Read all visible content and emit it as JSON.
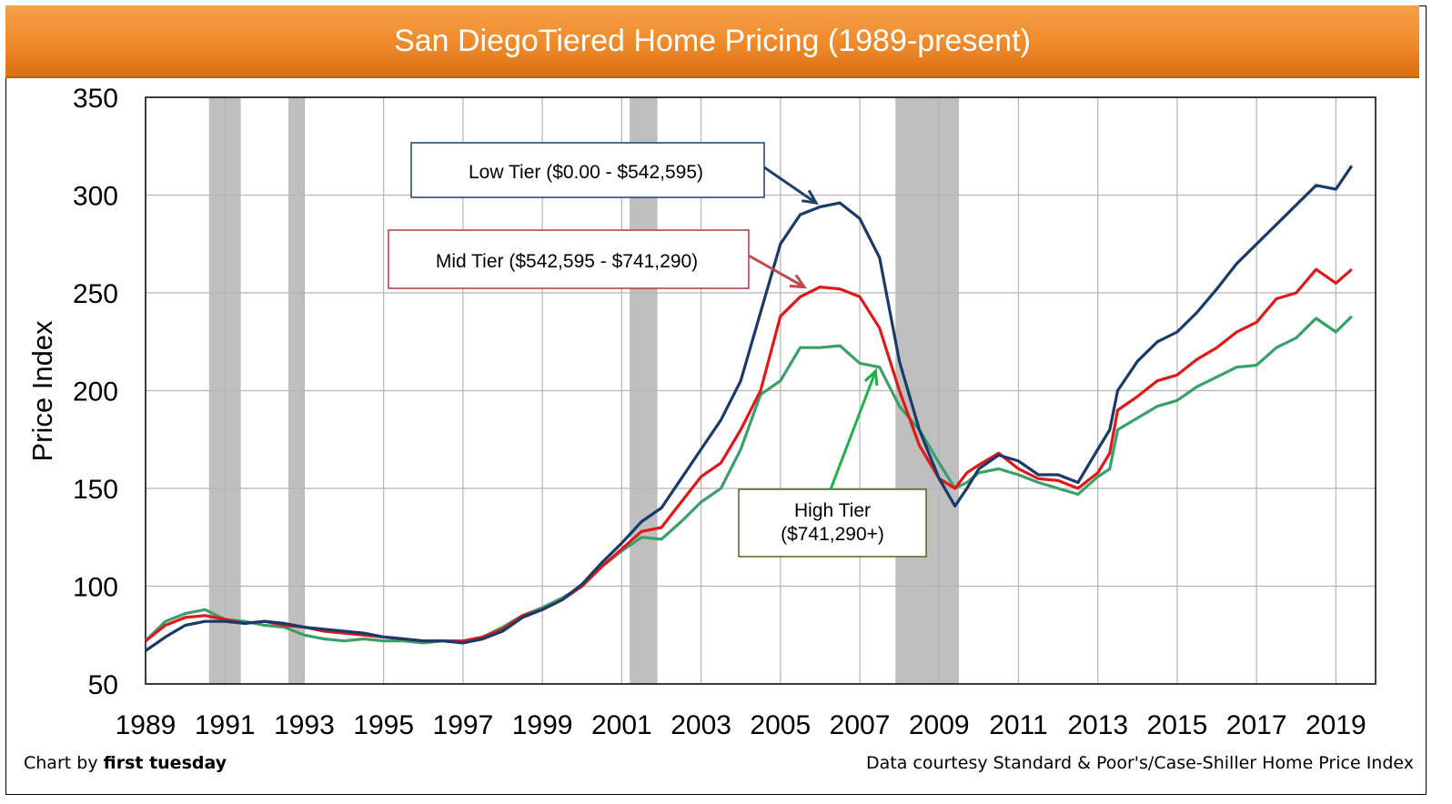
{
  "title": "San DiegoTiered Home Pricing (1989-present)",
  "footer": {
    "credit_prefix": "Chart by ",
    "credit_brand": "first tuesday",
    "source": "Data courtesy Standard & Poor's/Case-Shiller Home Price Index"
  },
  "chart_data": {
    "type": "line",
    "title": "San DiegoTiered Home Pricing (1989-present)",
    "xlabel": "",
    "ylabel": "Price Index",
    "xlim": [
      1989.0,
      2020.0
    ],
    "ylim": [
      50,
      350
    ],
    "grid": true,
    "x_ticks": [
      "1989",
      "1991",
      "1993",
      "1995",
      "1997",
      "1999",
      "2001",
      "2003",
      "2005",
      "2007",
      "2009",
      "2011",
      "2013",
      "2015",
      "2017",
      "2019"
    ],
    "y_ticks": [
      "50",
      "100",
      "150",
      "200",
      "250",
      "300",
      "350"
    ],
    "recessions": [
      [
        1990.6,
        1991.4
      ],
      [
        1992.6,
        1993.0
      ],
      [
        2001.2,
        2001.9
      ],
      [
        2007.9,
        2009.5
      ]
    ],
    "annotations": [
      {
        "label": "Low Tier ($0.00 - $542,595)",
        "points_to": [
          2005.9,
          296
        ],
        "border": "#1f3f6e"
      },
      {
        "label": "Mid Tier ($542,595 - $741,290)",
        "points_to": [
          2005.6,
          253
        ],
        "border": "#b23a3a"
      },
      {
        "label": "High Tier ($741,290+)",
        "lines": [
          "High Tier",
          "($741,290+)"
        ],
        "points_to": [
          2007.4,
          210
        ],
        "border": "#4a6b1f"
      }
    ],
    "series": [
      {
        "name": "Low Tier ($0.00 - $542,595)",
        "color": "#1a3a6b",
        "x": [
          1989.0,
          1989.5,
          1990.0,
          1990.5,
          1991.0,
          1991.5,
          1992.0,
          1992.5,
          1993.0,
          1993.5,
          1994.0,
          1994.5,
          1995.0,
          1995.5,
          1996.0,
          1996.5,
          1997.0,
          1997.5,
          1998.0,
          1998.5,
          1999.0,
          1999.5,
          2000.0,
          2000.5,
          2001.0,
          2001.5,
          2002.0,
          2002.5,
          2003.0,
          2003.5,
          2004.0,
          2004.5,
          2005.0,
          2005.5,
          2006.0,
          2006.5,
          2007.0,
          2007.5,
          2008.0,
          2008.5,
          2009.0,
          2009.4,
          2009.7,
          2010.0,
          2010.5,
          2011.0,
          2011.5,
          2012.0,
          2012.5,
          2013.0,
          2013.3,
          2013.5,
          2014.0,
          2014.5,
          2015.0,
          2015.5,
          2016.0,
          2016.5,
          2017.0,
          2017.5,
          2018.0,
          2018.5,
          2019.0,
          2019.4
        ],
        "values": [
          67,
          74,
          80,
          82,
          82,
          81,
          82,
          81,
          79,
          78,
          77,
          76,
          74,
          73,
          72,
          72,
          71,
          73,
          77,
          84,
          88,
          93,
          101,
          112,
          122,
          133,
          140,
          155,
          170,
          185,
          205,
          240,
          275,
          290,
          294,
          296,
          288,
          268,
          215,
          180,
          155,
          141,
          150,
          160,
          167,
          164,
          157,
          157,
          153,
          170,
          180,
          200,
          215,
          225,
          230,
          240,
          252,
          265,
          275,
          285,
          295,
          305,
          303,
          315
        ]
      },
      {
        "name": "Mid Tier ($542,595 - $741,290)",
        "color": "#e01818",
        "x": [
          1989.0,
          1989.5,
          1990.0,
          1990.5,
          1991.0,
          1991.5,
          1992.0,
          1992.5,
          1993.0,
          1993.5,
          1994.0,
          1994.5,
          1995.0,
          1995.5,
          1996.0,
          1996.5,
          1997.0,
          1997.5,
          1998.0,
          1998.5,
          1999.0,
          1999.5,
          2000.0,
          2000.5,
          2001.0,
          2001.5,
          2002.0,
          2002.5,
          2003.0,
          2003.5,
          2004.0,
          2004.5,
          2005.0,
          2005.5,
          2006.0,
          2006.5,
          2007.0,
          2007.5,
          2008.0,
          2008.5,
          2009.0,
          2009.4,
          2009.7,
          2010.0,
          2010.5,
          2011.0,
          2011.5,
          2012.0,
          2012.5,
          2013.0,
          2013.3,
          2013.5,
          2014.0,
          2014.5,
          2015.0,
          2015.5,
          2016.0,
          2016.5,
          2017.0,
          2017.5,
          2018.0,
          2018.5,
          2019.0,
          2019.4
        ],
        "values": [
          72,
          80,
          84,
          85,
          83,
          81,
          82,
          80,
          79,
          77,
          76,
          75,
          74,
          73,
          72,
          72,
          72,
          74,
          78,
          85,
          88,
          93,
          100,
          110,
          119,
          128,
          130,
          143,
          156,
          163,
          180,
          200,
          238,
          248,
          253,
          252,
          248,
          232,
          200,
          172,
          155,
          150,
          158,
          162,
          168,
          160,
          155,
          154,
          150,
          158,
          168,
          190,
          197,
          205,
          208,
          216,
          222,
          230,
          235,
          247,
          250,
          262,
          255,
          262
        ]
      },
      {
        "name": "High Tier ($741,290+)",
        "color": "#3aa06a",
        "x": [
          1989.0,
          1989.5,
          1990.0,
          1990.5,
          1991.0,
          1991.5,
          1992.0,
          1992.5,
          1993.0,
          1993.5,
          1994.0,
          1994.5,
          1995.0,
          1995.5,
          1996.0,
          1996.5,
          1997.0,
          1997.5,
          1998.0,
          1998.5,
          1999.0,
          1999.5,
          2000.0,
          2000.5,
          2001.0,
          2001.5,
          2002.0,
          2002.5,
          2003.0,
          2003.5,
          2004.0,
          2004.5,
          2005.0,
          2005.5,
          2006.0,
          2006.5,
          2007.0,
          2007.5,
          2008.0,
          2008.5,
          2009.0,
          2009.4,
          2009.7,
          2010.0,
          2010.5,
          2011.0,
          2011.5,
          2012.0,
          2012.5,
          2013.0,
          2013.3,
          2013.5,
          2014.0,
          2014.5,
          2015.0,
          2015.5,
          2016.0,
          2016.5,
          2017.0,
          2017.5,
          2018.0,
          2018.5,
          2019.0,
          2019.4
        ],
        "values": [
          72,
          82,
          86,
          88,
          83,
          82,
          80,
          79,
          75,
          73,
          72,
          73,
          72,
          72,
          71,
          72,
          71,
          74,
          79,
          85,
          89,
          94,
          100,
          110,
          118,
          125,
          124,
          133,
          143,
          150,
          170,
          198,
          205,
          222,
          222,
          223,
          214,
          212,
          192,
          180,
          163,
          150,
          153,
          158,
          160,
          157,
          153,
          150,
          147,
          156,
          160,
          180,
          186,
          192,
          195,
          202,
          207,
          212,
          213,
          222,
          227,
          237,
          230,
          238
        ]
      }
    ]
  }
}
